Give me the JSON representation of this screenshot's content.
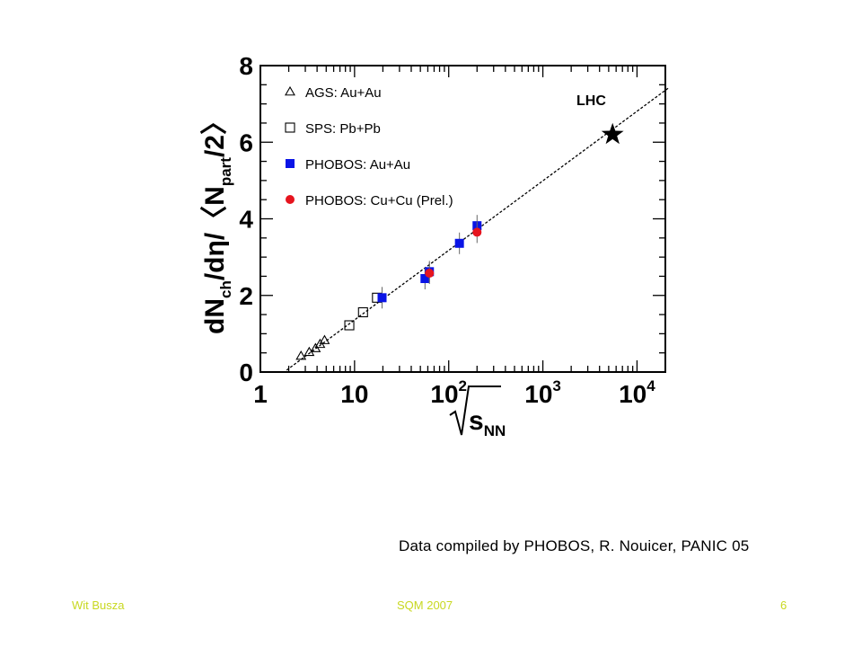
{
  "slide": {
    "credit": "Data compiled by PHOBOS, R. Nouicer, PANIC 05",
    "footer_left": "Wit Busza",
    "footer_center": "SQM 2007",
    "footer_right": "6",
    "footer_color": "#c8d820"
  },
  "chart_data": {
    "type": "scatter",
    "x_scale": "log",
    "xlim": [
      1,
      20000
    ],
    "ylim": [
      0,
      8
    ],
    "x_ticks": [
      {
        "value": 1,
        "base": "1",
        "exp": ""
      },
      {
        "value": 10,
        "base": "10",
        "exp": ""
      },
      {
        "value": 100,
        "base": "10",
        "exp": "2"
      },
      {
        "value": 1000,
        "base": "10",
        "exp": "3"
      },
      {
        "value": 10000,
        "base": "10",
        "exp": "4"
      }
    ],
    "y_ticks": [
      "0",
      "2",
      "4",
      "6",
      "8"
    ],
    "xlabel": {
      "main": "s",
      "sub": "NN"
    },
    "ylabel": {
      "a": "dN",
      "a_sub": "ch",
      "b": "/dη/〈N",
      "b_sub": "part",
      "c": "/2〉"
    },
    "series": [
      {
        "name": "AGS: Au+Au",
        "marker": "triangle-open",
        "color": "#000000",
        "points": [
          [
            2.7,
            0.42
          ],
          [
            3.3,
            0.52
          ],
          [
            3.85,
            0.62
          ],
          [
            4.3,
            0.73
          ],
          [
            4.8,
            0.83
          ]
        ]
      },
      {
        "name": "SPS: Pb+Pb",
        "marker": "square-open",
        "color": "#000000",
        "points": [
          [
            8.8,
            1.22
          ],
          [
            12.3,
            1.56
          ],
          [
            17.3,
            1.94
          ]
        ]
      },
      {
        "name": "PHOBOS: Au+Au",
        "marker": "square-filled",
        "color": "#0a14e6",
        "points": [
          [
            19.6,
            1.94
          ],
          [
            56,
            2.44
          ],
          [
            62.4,
            2.62
          ],
          [
            130,
            3.36
          ],
          [
            200,
            3.82
          ]
        ]
      },
      {
        "name": "PHOBOS: Cu+Cu (Prel.)",
        "marker": "circle-filled",
        "color": "#e6141e",
        "points": [
          [
            62.4,
            2.58
          ],
          [
            200,
            3.65
          ]
        ]
      }
    ],
    "fit_line": {
      "x": [
        1.9,
        22000
      ],
      "y": [
        0.05,
        7.43
      ],
      "style": "dashed"
    },
    "annotation": {
      "label": "LHC",
      "x": 5500,
      "y": 6.2,
      "marker": "star"
    },
    "legend_position": "top-left",
    "grid": false
  }
}
